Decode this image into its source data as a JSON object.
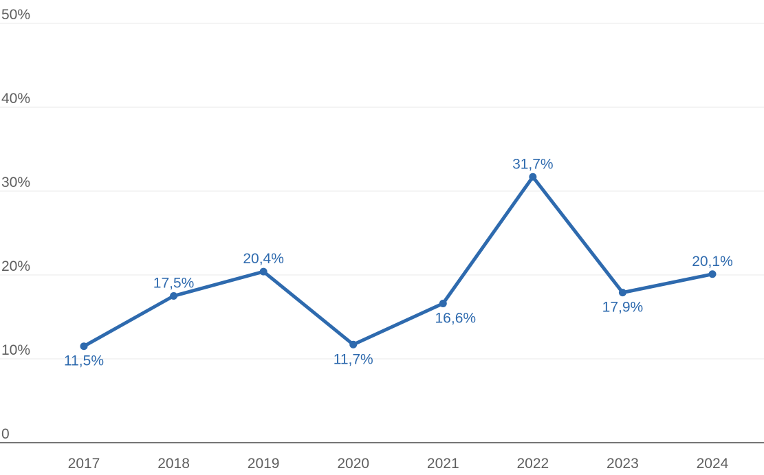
{
  "chart_data": {
    "type": "line",
    "title": "",
    "xlabel": "",
    "ylabel": "",
    "categories": [
      "2017",
      "2018",
      "2019",
      "2020",
      "2021",
      "2022",
      "2023",
      "2024"
    ],
    "series": [
      {
        "name": "percentage-series",
        "values": [
          11.5,
          17.5,
          20.4,
          11.7,
          16.6,
          31.7,
          17.9,
          20.1
        ],
        "value_labels": [
          "11,5%",
          "17,5%",
          "20,4%",
          "11,7%",
          "16,6%",
          "31,7%",
          "17,9%",
          "20,1%"
        ],
        "label_positions": [
          "below",
          "above",
          "above",
          "below",
          "below-right",
          "above",
          "below",
          "above"
        ],
        "color": "#2e6aae"
      }
    ],
    "ylim": [
      0,
      50
    ],
    "yticks": [
      {
        "value": 0,
        "label": "0"
      },
      {
        "value": 10,
        "label": "10%"
      },
      {
        "value": 20,
        "label": "20%"
      },
      {
        "value": 30,
        "label": "30%"
      },
      {
        "value": 40,
        "label": "40%"
      },
      {
        "value": 50,
        "label": "50%"
      }
    ],
    "grid": true,
    "legend": "none",
    "colors": {
      "line": "#2e6aae",
      "point": "#2e6aae",
      "value_label": "#2e6aae",
      "axis_text": "#5f5f5f",
      "gridline": "#e9e9e9",
      "zero_line": "#757575",
      "background": "#ffffff"
    }
  }
}
